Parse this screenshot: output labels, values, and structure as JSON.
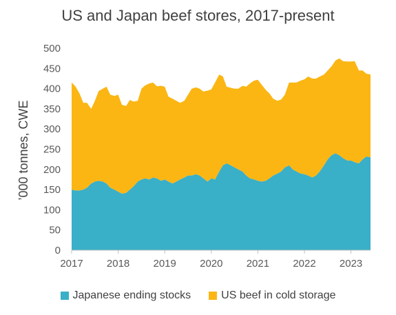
{
  "chart_data": {
    "type": "area",
    "stacked": true,
    "title": "US and Japan beef stores, 2017-present",
    "ylabel": "’000 tonnes, CWE",
    "xlabel": "",
    "ylim": [
      0,
      500
    ],
    "yticks": [
      0,
      50,
      100,
      150,
      200,
      250,
      300,
      350,
      400,
      450,
      500
    ],
    "xlim": [
      2017,
      2023.42
    ],
    "xticks": [
      2017,
      2018,
      2019,
      2020,
      2021,
      2022,
      2023
    ],
    "xticklabels": [
      "2017",
      "2018",
      "2019",
      "2020",
      "2021",
      "2022",
      "2023"
    ],
    "legend": "bottom",
    "grid": false,
    "x": [
      2017.0,
      2017.08,
      2017.17,
      2017.25,
      2017.33,
      2017.42,
      2017.5,
      2017.58,
      2017.67,
      2017.75,
      2017.83,
      2017.92,
      2018.0,
      2018.08,
      2018.17,
      2018.25,
      2018.33,
      2018.42,
      2018.5,
      2018.58,
      2018.67,
      2018.75,
      2018.83,
      2018.92,
      2019.0,
      2019.08,
      2019.17,
      2019.25,
      2019.33,
      2019.42,
      2019.5,
      2019.58,
      2019.67,
      2019.75,
      2019.83,
      2019.92,
      2020.0,
      2020.08,
      2020.17,
      2020.25,
      2020.33,
      2020.42,
      2020.5,
      2020.58,
      2020.67,
      2020.75,
      2020.83,
      2020.92,
      2021.0,
      2021.08,
      2021.17,
      2021.25,
      2021.33,
      2021.42,
      2021.5,
      2021.58,
      2021.67,
      2021.75,
      2021.83,
      2021.92,
      2022.0,
      2022.08,
      2022.17,
      2022.25,
      2022.33,
      2022.42,
      2022.5,
      2022.58,
      2022.67,
      2022.75,
      2022.83,
      2022.92,
      2023.0,
      2023.08,
      2023.17,
      2023.25,
      2023.33,
      2023.42
    ],
    "series": [
      {
        "name": "Japanese ending stocks",
        "color": "#3AAFC8",
        "values": [
          150,
          148,
          148,
          150,
          155,
          165,
          170,
          172,
          170,
          165,
          155,
          150,
          145,
          140,
          142,
          150,
          158,
          170,
          175,
          178,
          175,
          180,
          178,
          172,
          175,
          170,
          165,
          170,
          175,
          180,
          185,
          185,
          188,
          185,
          178,
          170,
          178,
          175,
          195,
          210,
          215,
          210,
          205,
          200,
          195,
          185,
          178,
          175,
          172,
          170,
          172,
          178,
          185,
          190,
          195,
          205,
          210,
          200,
          195,
          190,
          188,
          185,
          180,
          185,
          195,
          210,
          225,
          235,
          240,
          235,
          228,
          222,
          222,
          218,
          215,
          225,
          232,
          230
        ]
      },
      {
        "name": "US beef in cold storage",
        "color": "#FBB614",
        "values": [
          265,
          258,
          240,
          215,
          210,
          185,
          200,
          222,
          230,
          240,
          230,
          232,
          240,
          220,
          215,
          222,
          210,
          200,
          225,
          230,
          238,
          235,
          228,
          235,
          230,
          210,
          210,
          200,
          190,
          190,
          200,
          215,
          215,
          215,
          215,
          225,
          220,
          240,
          240,
          220,
          190,
          192,
          195,
          200,
          212,
          220,
          235,
          245,
          250,
          240,
          225,
          210,
          190,
          180,
          178,
          180,
          205,
          215,
          220,
          230,
          235,
          245,
          245,
          240,
          235,
          225,
          220,
          220,
          230,
          240,
          240,
          245,
          245,
          250,
          230,
          220,
          205,
          205
        ]
      }
    ]
  }
}
